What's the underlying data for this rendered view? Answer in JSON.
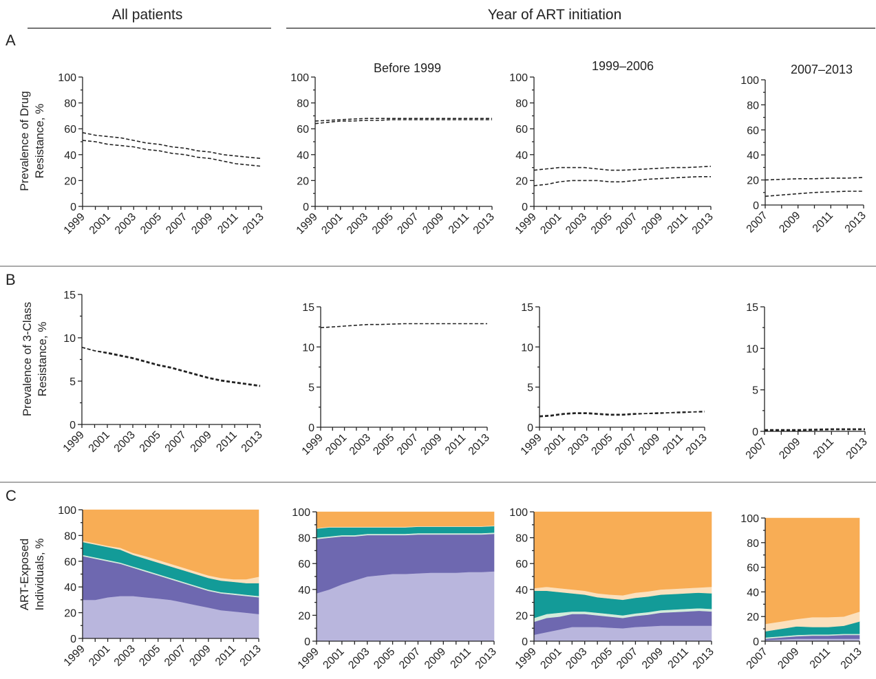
{
  "headers": {
    "all_patients": "All patients",
    "year_of_art_initiation": "Year of ART initiation"
  },
  "panels": [
    "A",
    "B",
    "C"
  ],
  "group_titles": [
    "Before 1999",
    "1999–2006",
    "2007–2013"
  ],
  "row_ylabels": {
    "A": [
      "Prevalence of Drug",
      "Resistance, %"
    ],
    "B": [
      "Prevalence of 3-Class",
      "Resistance, %"
    ],
    "C": [
      "ART-Exposed",
      "Individuals, %"
    ]
  },
  "colors": {
    "layer1": "#b9b6dd",
    "layer2": "#6e68b0",
    "layer3": "#d3ecdb",
    "layer4": "#139b98",
    "layer5": "#fbe0bd",
    "layer6": "#f8ad55",
    "line": "#222222"
  },
  "chart_data": [
    {
      "id": "A-all",
      "type": "line",
      "x": [
        1999,
        2000,
        2001,
        2002,
        2003,
        2004,
        2005,
        2006,
        2007,
        2008,
        2009,
        2010,
        2011,
        2012,
        2013
      ],
      "ylim": [
        0,
        100
      ],
      "yticks": [
        0,
        20,
        40,
        60,
        80,
        100
      ],
      "xticks": [
        1999,
        2001,
        2003,
        2005,
        2007,
        2009,
        2011,
        2013
      ],
      "series": [
        {
          "values": [
            57,
            55,
            54,
            53,
            51,
            49,
            48,
            46,
            45,
            43,
            42,
            40,
            39,
            38,
            37
          ]
        },
        {
          "values": [
            51,
            50,
            48,
            47,
            46,
            44,
            43,
            41,
            40,
            38,
            37,
            35,
            33,
            32,
            31
          ]
        }
      ]
    },
    {
      "id": "A-before1999",
      "type": "line",
      "x": [
        1999,
        2000,
        2001,
        2002,
        2003,
        2004,
        2005,
        2006,
        2007,
        2008,
        2009,
        2010,
        2011,
        2012,
        2013
      ],
      "ylim": [
        0,
        100
      ],
      "yticks": [
        0,
        20,
        40,
        60,
        80,
        100
      ],
      "xticks": [
        1999,
        2001,
        2003,
        2005,
        2007,
        2009,
        2011,
        2013
      ],
      "series": [
        {
          "values": [
            66,
            66.5,
            67,
            67.5,
            68,
            68,
            68,
            68,
            68,
            68,
            68,
            68,
            68,
            68,
            68
          ]
        },
        {
          "values": [
            64,
            65,
            66,
            66,
            66.5,
            66.5,
            67,
            67,
            67,
            67,
            67,
            67,
            67,
            67,
            67
          ]
        }
      ]
    },
    {
      "id": "A-1999-2006",
      "type": "line",
      "x": [
        1999,
        2000,
        2001,
        2002,
        2003,
        2004,
        2005,
        2006,
        2007,
        2008,
        2009,
        2010,
        2011,
        2012,
        2013
      ],
      "ylim": [
        0,
        100
      ],
      "yticks": [
        0,
        20,
        40,
        60,
        80,
        100
      ],
      "xticks": [
        1999,
        2001,
        2003,
        2005,
        2007,
        2009,
        2011,
        2013
      ],
      "series": [
        {
          "values": [
            28,
            29,
            30,
            30,
            30,
            29,
            28,
            28,
            28.5,
            29,
            29.5,
            30,
            30,
            30.5,
            31
          ]
        },
        {
          "values": [
            16,
            17,
            19,
            20,
            20,
            20,
            19,
            19,
            20,
            21,
            21.5,
            22,
            22.5,
            23,
            23
          ]
        }
      ]
    },
    {
      "id": "A-2007-2013",
      "type": "line",
      "x": [
        2007,
        2008,
        2009,
        2010,
        2011,
        2012,
        2013
      ],
      "ylim": [
        0,
        100
      ],
      "yticks": [
        0,
        20,
        40,
        60,
        80,
        100
      ],
      "xticks": [
        2007,
        2009,
        2011,
        2013
      ],
      "series": [
        {
          "values": [
            20,
            20.5,
            21,
            21,
            21.5,
            21.5,
            22
          ]
        },
        {
          "values": [
            7,
            8,
            9,
            10,
            10.5,
            11,
            11
          ]
        }
      ]
    },
    {
      "id": "B-all",
      "type": "line",
      "x": [
        1999,
        2000,
        2001,
        2002,
        2003,
        2004,
        2005,
        2006,
        2007,
        2008,
        2009,
        2010,
        2011,
        2012,
        2013
      ],
      "ylim": [
        0,
        15
      ],
      "yticks": [
        0,
        5,
        10,
        15
      ],
      "xticks": [
        1999,
        2001,
        2003,
        2005,
        2007,
        2009,
        2011,
        2013
      ],
      "series": [
        {
          "values": [
            8.9,
            8.5,
            8.3,
            8.0,
            7.7,
            7.3,
            6.9,
            6.6,
            6.2,
            5.8,
            5.4,
            5.1,
            4.9,
            4.7,
            4.5
          ]
        },
        {
          "values": [
            8.9,
            8.5,
            8.2,
            7.9,
            7.6,
            7.2,
            6.8,
            6.5,
            6.1,
            5.7,
            5.3,
            5.0,
            4.8,
            4.6,
            4.4
          ]
        }
      ]
    },
    {
      "id": "B-before1999",
      "type": "line",
      "x": [
        1999,
        2000,
        2001,
        2002,
        2003,
        2004,
        2005,
        2006,
        2007,
        2008,
        2009,
        2010,
        2011,
        2012,
        2013
      ],
      "ylim": [
        0,
        15
      ],
      "yticks": [
        0,
        5,
        10,
        15
      ],
      "xticks": [
        1999,
        2001,
        2003,
        2005,
        2007,
        2009,
        2011,
        2013
      ],
      "series": [
        {
          "values": [
            12.4,
            12.5,
            12.6,
            12.7,
            12.8,
            12.8,
            12.85,
            12.9,
            12.9,
            12.9,
            12.9,
            12.9,
            12.9,
            12.9,
            12.9
          ]
        }
      ]
    },
    {
      "id": "B-1999-2006",
      "type": "line",
      "x": [
        1999,
        2000,
        2001,
        2002,
        2003,
        2004,
        2005,
        2006,
        2007,
        2008,
        2009,
        2010,
        2011,
        2012,
        2013
      ],
      "ylim": [
        0,
        15
      ],
      "yticks": [
        0,
        5,
        10,
        15
      ],
      "xticks": [
        1999,
        2001,
        2003,
        2005,
        2007,
        2009,
        2011,
        2013
      ],
      "series": [
        {
          "values": [
            1.4,
            1.5,
            1.7,
            1.8,
            1.8,
            1.7,
            1.6,
            1.6,
            1.7,
            1.7,
            1.8,
            1.8,
            1.9,
            1.9,
            2.0
          ]
        },
        {
          "values": [
            1.3,
            1.4,
            1.6,
            1.7,
            1.7,
            1.6,
            1.5,
            1.5,
            1.6,
            1.7,
            1.7,
            1.8,
            1.8,
            1.9,
            1.9
          ]
        }
      ]
    },
    {
      "id": "B-2007-2013",
      "type": "line",
      "x": [
        2007,
        2008,
        2009,
        2010,
        2011,
        2012,
        2013
      ],
      "ylim": [
        0,
        15
      ],
      "yticks": [
        0,
        5,
        10,
        15
      ],
      "xticks": [
        2007,
        2009,
        2011,
        2013
      ],
      "series": [
        {
          "values": [
            0.2,
            0.2,
            0.2,
            0.25,
            0.3,
            0.3,
            0.3
          ]
        },
        {
          "values": [
            0.1,
            0.1,
            0.1,
            0.15,
            0.2,
            0.2,
            0.2
          ]
        }
      ]
    },
    {
      "id": "C-all",
      "type": "area",
      "x": [
        1999,
        2000,
        2001,
        2002,
        2003,
        2004,
        2005,
        2006,
        2007,
        2008,
        2009,
        2010,
        2011,
        2012,
        2013
      ],
      "ylim": [
        0,
        100
      ],
      "yticks": [
        0,
        20,
        40,
        60,
        80,
        100
      ],
      "xticks": [
        1999,
        2001,
        2003,
        2005,
        2007,
        2009,
        2011,
        2013
      ],
      "series": [
        {
          "values": [
            30,
            30,
            32,
            33,
            33,
            32,
            31,
            30,
            28,
            26,
            24,
            22,
            21,
            20,
            19
          ]
        },
        {
          "values": [
            34,
            32,
            28,
            25,
            22,
            20,
            18,
            16,
            15,
            14,
            13,
            13,
            13,
            13,
            13
          ]
        },
        {
          "values": [
            1,
            1,
            1,
            1,
            1,
            1,
            1,
            1,
            1,
            1,
            1,
            1,
            1,
            1,
            1
          ]
        },
        {
          "values": [
            10,
            10,
            10,
            10,
            9,
            9,
            9,
            9,
            9,
            9,
            9,
            9,
            9,
            9,
            10
          ]
        },
        {
          "values": [
            1,
            1,
            1,
            1.5,
            1.5,
            2,
            2,
            2,
            2,
            2,
            2,
            2,
            2,
            3,
            5
          ]
        },
        {
          "values": [
            24,
            26,
            28,
            29.5,
            33.5,
            36,
            39,
            42,
            45,
            48,
            51,
            53,
            54,
            54,
            52
          ]
        }
      ]
    },
    {
      "id": "C-before1999",
      "type": "area",
      "x": [
        1999,
        2000,
        2001,
        2002,
        2003,
        2004,
        2005,
        2006,
        2007,
        2008,
        2009,
        2010,
        2011,
        2012,
        2013
      ],
      "ylim": [
        0,
        100
      ],
      "yticks": [
        0,
        20,
        40,
        60,
        80,
        100
      ],
      "xticks": [
        1999,
        2001,
        2003,
        2005,
        2007,
        2009,
        2011,
        2013
      ],
      "series": [
        {
          "values": [
            37,
            40,
            44,
            47,
            50,
            51,
            52,
            52,
            52.5,
            53,
            53,
            53,
            53.5,
            53.5,
            54
          ]
        },
        {
          "values": [
            42,
            40,
            37,
            34,
            32,
            31,
            30,
            30,
            30,
            29.5,
            29.5,
            29.5,
            29,
            29,
            29
          ]
        },
        {
          "values": [
            1,
            1,
            1,
            1,
            1,
            1,
            1,
            1,
            1,
            1,
            1,
            1,
            1,
            1,
            1
          ]
        },
        {
          "values": [
            7,
            7,
            6,
            6,
            5,
            5,
            5,
            5,
            5,
            5,
            5,
            5,
            5,
            5,
            5
          ]
        },
        {
          "values": [
            0.5,
            0.5,
            0.5,
            0.5,
            0.5,
            0.5,
            0.5,
            0.5,
            0.5,
            0.5,
            0.5,
            0.5,
            0.5,
            0.5,
            0.5
          ]
        },
        {
          "values": [
            12.5,
            11.5,
            11.5,
            11.5,
            11.5,
            11.5,
            11.5,
            11.5,
            11,
            11,
            11,
            11,
            11,
            11,
            10.5
          ]
        }
      ]
    },
    {
      "id": "C-1999-2006",
      "type": "area",
      "x": [
        1999,
        2000,
        2001,
        2002,
        2003,
        2004,
        2005,
        2006,
        2007,
        2008,
        2009,
        2010,
        2011,
        2012,
        2013
      ],
      "ylim": [
        0,
        100
      ],
      "yticks": [
        0,
        20,
        40,
        60,
        80,
        100
      ],
      "xticks": [
        1999,
        2001,
        2003,
        2005,
        2007,
        2009,
        2011,
        2013
      ],
      "series": [
        {
          "values": [
            5,
            7,
            9,
            11,
            11,
            11,
            10.5,
            10,
            11,
            11.5,
            12,
            12,
            12,
            12,
            12
          ]
        },
        {
          "values": [
            10,
            11,
            10,
            10,
            10,
            9,
            8.5,
            8,
            8.5,
            9,
            10,
            10.5,
            11,
            11.5,
            11
          ]
        },
        {
          "values": [
            3,
            3,
            3,
            2,
            2,
            2,
            2,
            2,
            2,
            2,
            2,
            2,
            2,
            2,
            2
          ]
        },
        {
          "values": [
            21,
            18,
            16,
            14,
            13,
            12,
            12,
            12,
            12,
            12,
            12,
            12,
            12,
            12,
            12
          ]
        },
        {
          "values": [
            2,
            3,
            3,
            3,
            3,
            3,
            3,
            3.5,
            4,
            4,
            4,
            4,
            4,
            4,
            5
          ]
        },
        {
          "values": [
            59,
            58,
            59,
            60,
            61,
            63,
            64,
            64.5,
            62.5,
            61.5,
            60,
            59.5,
            59,
            58.5,
            58
          ]
        }
      ]
    },
    {
      "id": "C-2007-2013",
      "type": "area",
      "x": [
        2007,
        2008,
        2009,
        2010,
        2011,
        2012,
        2013
      ],
      "ylim": [
        0,
        100
      ],
      "yticks": [
        0,
        20,
        40,
        60,
        80,
        100
      ],
      "xticks": [
        2007,
        2009,
        2011,
        2013
      ],
      "series": [
        {
          "values": [
            1,
            1.5,
            2,
            2,
            2,
            2,
            2
          ]
        },
        {
          "values": [
            1,
            1.5,
            2,
            2.5,
            2.5,
            3,
            3
          ]
        },
        {
          "values": [
            1,
            1,
            1,
            1,
            1,
            1,
            1
          ]
        },
        {
          "values": [
            5,
            6,
            7,
            6,
            6,
            6.5,
            10
          ]
        },
        {
          "values": [
            6,
            6,
            6,
            8,
            8,
            7.5,
            8
          ]
        },
        {
          "values": [
            86,
            84,
            82,
            80.5,
            80.5,
            80,
            76
          ]
        }
      ]
    }
  ]
}
